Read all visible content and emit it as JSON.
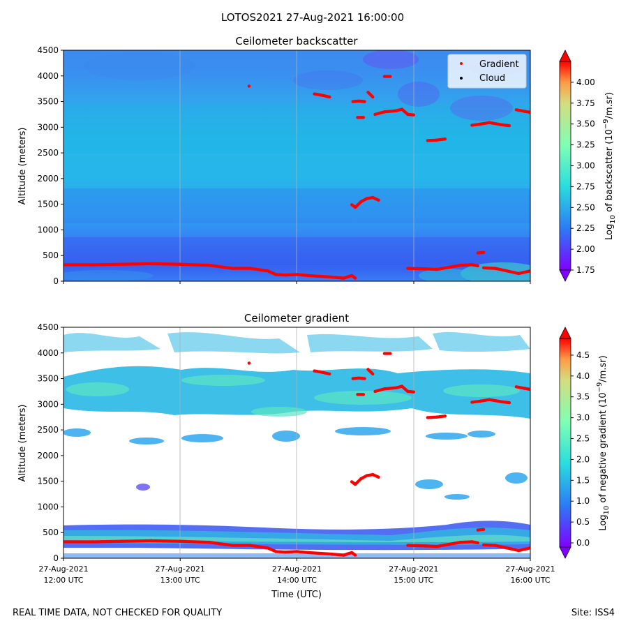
{
  "suptitle": "LOTOS2021 27-Aug-2021 16:00:00",
  "footer_left": "REAL TIME DATA, NOT CHECKED FOR QUALITY",
  "footer_right": "Site: ISS4",
  "xlabel": "Time (UTC)",
  "x_ticks": [
    {
      "t": 12,
      "line1": "27-Aug-2021",
      "line2": "12:00 UTC"
    },
    {
      "t": 13,
      "line1": "27-Aug-2021",
      "line2": "13:00 UTC"
    },
    {
      "t": 14,
      "line1": "27-Aug-2021",
      "line2": "14:00 UTC"
    },
    {
      "t": 15,
      "line1": "27-Aug-2021",
      "line2": "15:00 UTC"
    },
    {
      "t": 16,
      "line1": "27-Aug-2021",
      "line2": "16:00 UTC"
    }
  ],
  "chart_data": [
    {
      "type": "heatmap",
      "title": "Ceilometer backscatter",
      "ylabel": "Altitude (meters)",
      "xlim": [
        "2021-08-27 12:00 UTC",
        "2021-08-27 16:00 UTC"
      ],
      "ylim": [
        0,
        4500
      ],
      "y_ticks": [
        0,
        500,
        1000,
        1500,
        2000,
        2500,
        3000,
        3500,
        4000,
        4500
      ],
      "colorbar": {
        "label": "Log10 of backscatter (10^-9/m.sr)",
        "min": 1.75,
        "max": 4.25,
        "ticks": [
          "1.75",
          "2.00",
          "2.25",
          "2.50",
          "2.75",
          "3.00",
          "3.25",
          "3.50",
          "3.75",
          "4.00"
        ],
        "colormap": "rainbow",
        "extend": "both"
      },
      "legend": {
        "placement": "upper right",
        "entries": [
          {
            "label": "Gradient",
            "color": "#ff0000"
          },
          {
            "label": "Cloud",
            "color": "#000000"
          }
        ]
      }
    },
    {
      "type": "heatmap",
      "title": "Ceilometer gradient",
      "ylabel": "Altitude (meters)",
      "xlabel": "Time (UTC)",
      "xlim": [
        "2021-08-27 12:00 UTC",
        "2021-08-27 16:00 UTC"
      ],
      "ylim": [
        0,
        4500
      ],
      "y_ticks": [
        0,
        500,
        1000,
        1500,
        2000,
        2500,
        3000,
        3500,
        4000,
        4500
      ],
      "colorbar": {
        "label": "Log10 of negative gradient (10^-9/m.sr)",
        "min": -0.1,
        "max": 4.9,
        "ticks": [
          "0.0",
          "0.5",
          "1.0",
          "1.5",
          "2.0",
          "2.5",
          "3.0",
          "3.5",
          "4.0",
          "4.5"
        ],
        "colormap": "rainbow",
        "extend": "both"
      }
    }
  ],
  "gradient_points": [
    {
      "segment": "boundary-layer-1",
      "x_hours": [
        12.0,
        12.25,
        12.5,
        12.75,
        13.0,
        13.25,
        13.45,
        13.6,
        13.75,
        13.82,
        13.9,
        14.0,
        14.1,
        14.3,
        14.4,
        14.47,
        14.5
      ],
      "y_m": [
        320,
        320,
        330,
        340,
        330,
        310,
        250,
        250,
        200,
        130,
        120,
        130,
        110,
        80,
        60,
        110,
        60
      ]
    },
    {
      "segment": "boundary-layer-2",
      "x_hours": [
        14.95,
        15.1,
        15.2,
        15.3,
        15.4,
        15.5,
        15.55
      ],
      "y_m": [
        250,
        240,
        230,
        270,
        310,
        320,
        300
      ]
    },
    {
      "segment": "boundary-layer-3",
      "x_hours": [
        15.6,
        15.7,
        15.8,
        15.9,
        16.0
      ],
      "y_m": [
        260,
        250,
        200,
        150,
        200
      ]
    },
    {
      "segment": "spot-555",
      "x_hours": [
        15.55,
        15.6
      ],
      "y_m": [
        550,
        560
      ]
    },
    {
      "segment": "spot-3800",
      "x_hours": [
        13.59
      ],
      "y_m": [
        3800
      ]
    },
    {
      "segment": "layer-3650",
      "x_hours": [
        14.15,
        14.2,
        14.28
      ],
      "y_m": [
        3650,
        3630,
        3590
      ]
    },
    {
      "segment": "layer-3500",
      "x_hours": [
        14.48,
        14.53,
        14.58
      ],
      "y_m": [
        3500,
        3510,
        3500
      ]
    },
    {
      "segment": "spot-3200",
      "x_hours": [
        14.52,
        14.57
      ],
      "y_m": [
        3190,
        3190
      ]
    },
    {
      "segment": "layer-3600",
      "x_hours": [
        14.61,
        14.65
      ],
      "y_m": [
        3680,
        3590
      ]
    },
    {
      "segment": "spot-4000",
      "x_hours": [
        14.75,
        14.8
      ],
      "y_m": [
        3990,
        3990
      ]
    },
    {
      "segment": "layer-3300",
      "x_hours": [
        14.67,
        14.75,
        14.85,
        14.9,
        14.95,
        15.0
      ],
      "y_m": [
        3250,
        3300,
        3320,
        3350,
        3250,
        3240
      ]
    },
    {
      "segment": "layer-2750",
      "x_hours": [
        15.12,
        15.2,
        15.27
      ],
      "y_m": [
        2740,
        2750,
        2770
      ]
    },
    {
      "segment": "layer-3050",
      "x_hours": [
        15.5,
        15.57,
        15.65,
        15.75,
        15.82
      ],
      "y_m": [
        3040,
        3060,
        3090,
        3050,
        3030
      ]
    },
    {
      "segment": "layer-3320",
      "x_hours": [
        15.88,
        15.95,
        16.0
      ],
      "y_m": [
        3340,
        3310,
        3290
      ]
    },
    {
      "segment": "layer-1550",
      "x_hours": [
        14.47,
        14.5,
        14.55,
        14.6,
        14.65,
        14.7
      ],
      "y_m": [
        1490,
        1440,
        1550,
        1610,
        1630,
        1580
      ]
    }
  ]
}
